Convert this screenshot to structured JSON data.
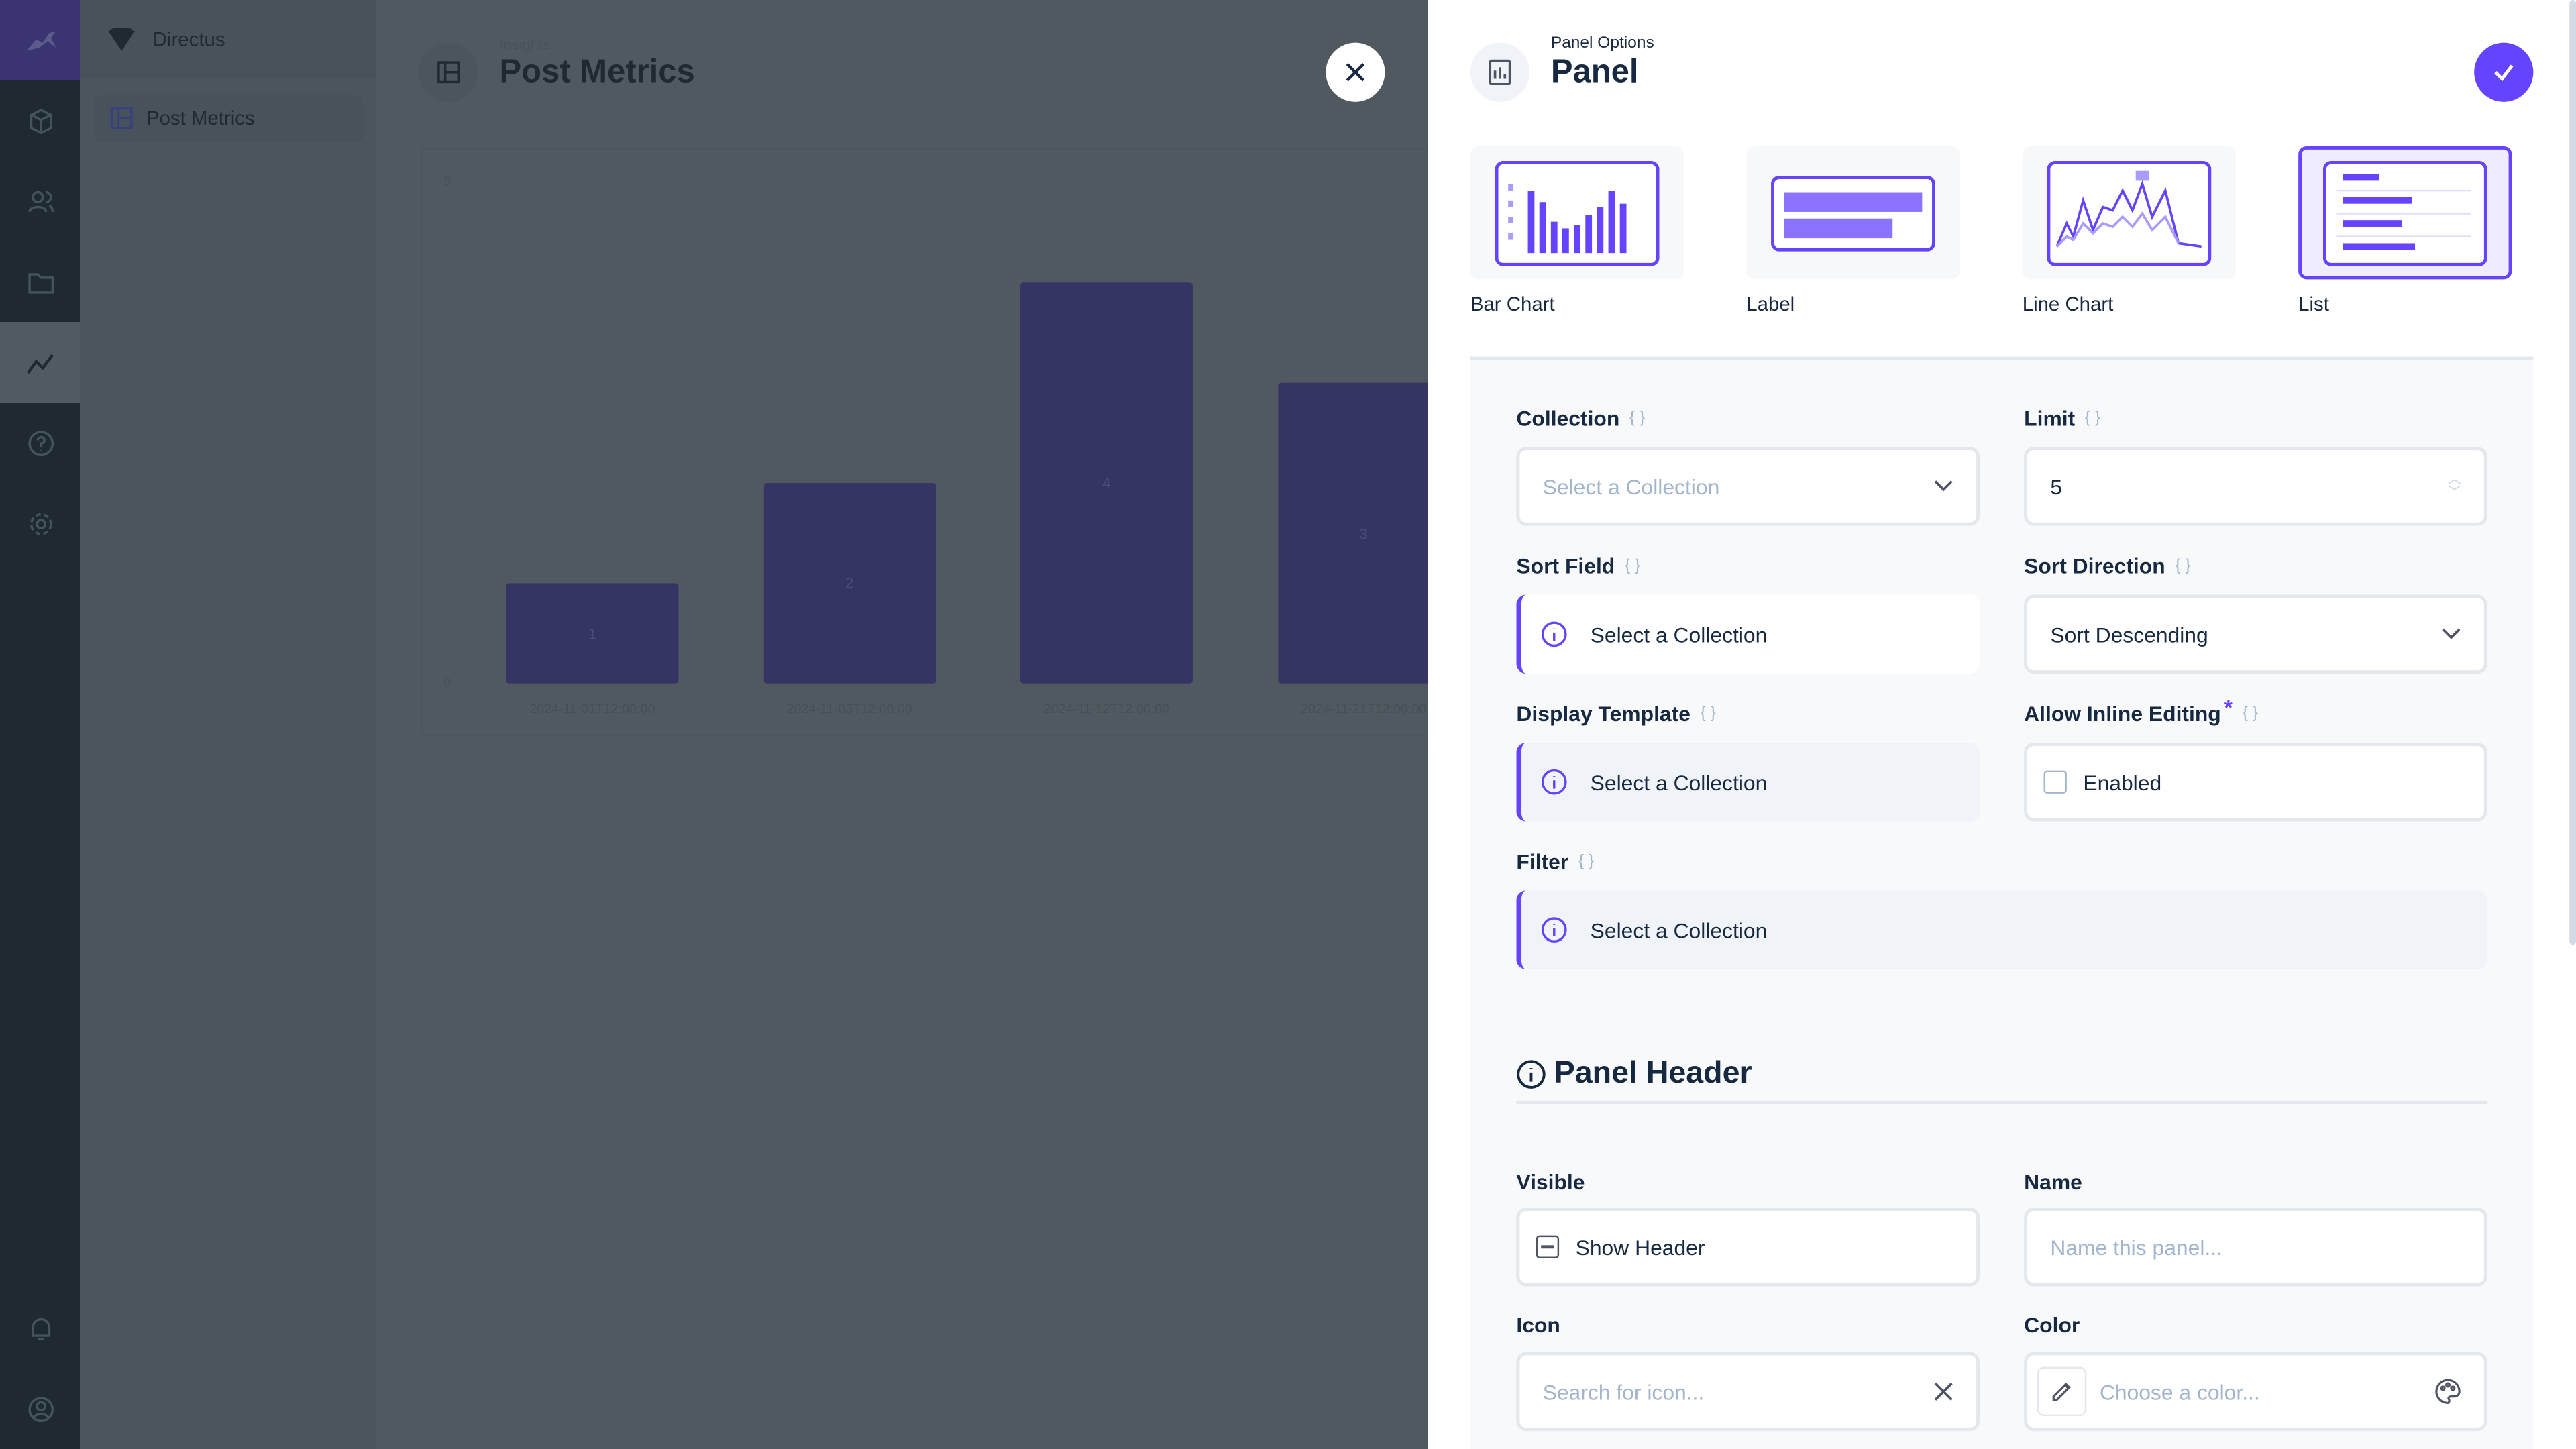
{
  "project": {
    "name": "Directus"
  },
  "nav": {
    "items": [
      {
        "label": "Post Metrics"
      }
    ]
  },
  "rail": {
    "icons": [
      "directus-logo",
      "content-icon",
      "users-icon",
      "files-icon",
      "insights-icon",
      "help-icon",
      "settings-icon",
      "notifications-icon",
      "user-icon"
    ],
    "active": "insights-icon"
  },
  "header": {
    "breadcrumb": "Insights",
    "title": "Post Metrics"
  },
  "chart_data": {
    "type": "bar",
    "categories": [
      "2024-11-01T12:00:00",
      "2024-11-03T12:00:00",
      "2024-11-12T12:00:00",
      "2024-11-21T12:00:00"
    ],
    "values": [
      1,
      2,
      4,
      3
    ],
    "data_labels": [
      "1",
      "2",
      "4",
      "3"
    ],
    "ylim": [
      0,
      5
    ],
    "y_ticks": [
      "0",
      "5"
    ],
    "color": "#353565"
  },
  "drawer": {
    "breadcrumb": "Panel Options",
    "title": "Panel",
    "accent": "#6644ff",
    "types": [
      {
        "label": "Bar Chart",
        "selected": false
      },
      {
        "label": "Label",
        "selected": false
      },
      {
        "label": "Line Chart",
        "selected": false
      },
      {
        "label": "List",
        "selected": true
      }
    ],
    "fields": {
      "collection": {
        "label": "Collection",
        "placeholder": "Select a Collection"
      },
      "limit": {
        "label": "Limit",
        "value": "5"
      },
      "sort_field": {
        "label": "Sort Field",
        "notice": "Select a Collection"
      },
      "sort_direction": {
        "label": "Sort Direction",
        "value": "Sort Descending"
      },
      "display_template": {
        "label": "Display Template",
        "notice": "Select a Collection"
      },
      "inline_editing": {
        "label": "Allow Inline Editing",
        "required": "*",
        "checkbox": "Enabled"
      },
      "filter": {
        "label": "Filter",
        "notice": "Select a Collection"
      }
    },
    "header_section": {
      "title": "Panel Header",
      "visible": {
        "label": "Visible",
        "checkbox": "Show Header"
      },
      "name": {
        "label": "Name",
        "placeholder": "Name this panel..."
      },
      "icon": {
        "label": "Icon",
        "placeholder": "Search for icon..."
      },
      "color": {
        "label": "Color",
        "placeholder": "Choose a color..."
      }
    }
  }
}
